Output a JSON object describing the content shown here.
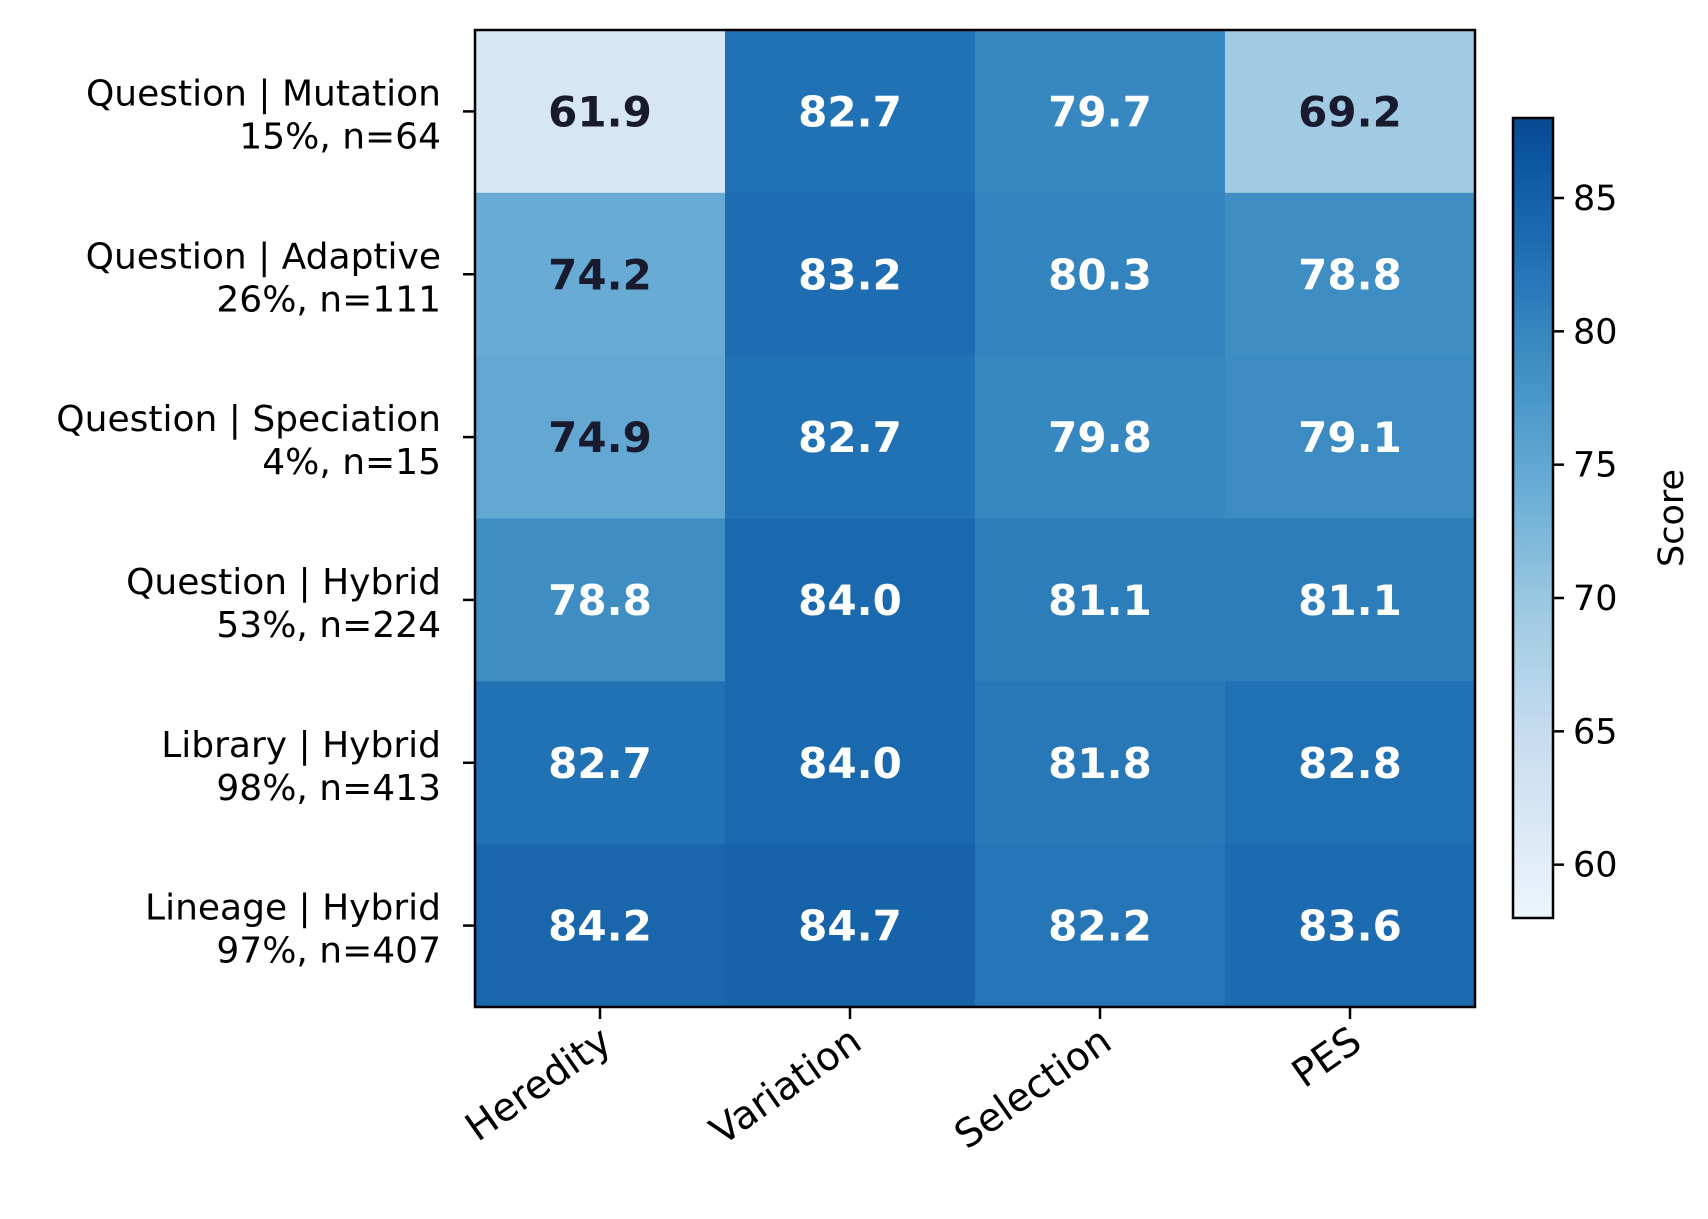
{
  "chart_data": {
    "type": "heatmap",
    "columns": [
      "Heredity",
      "Variation",
      "Selection",
      "PES"
    ],
    "rows": [
      {
        "label": "Question | Mutation",
        "sublabel": "15%, n=64"
      },
      {
        "label": "Question | Adaptive",
        "sublabel": "26%, n=111"
      },
      {
        "label": "Question | Speciation",
        "sublabel": "4%, n=15"
      },
      {
        "label": "Question | Hybrid",
        "sublabel": "53%, n=224"
      },
      {
        "label": "Library | Hybrid",
        "sublabel": "98%, n=413"
      },
      {
        "label": "Lineage | Hybrid",
        "sublabel": "97%, n=407"
      }
    ],
    "values": [
      [
        61.9,
        82.7,
        79.7,
        69.2
      ],
      [
        74.2,
        83.2,
        80.3,
        78.8
      ],
      [
        74.9,
        82.7,
        79.8,
        79.1
      ],
      [
        78.8,
        84.0,
        81.1,
        81.1
      ],
      [
        82.7,
        84.0,
        81.8,
        82.8
      ],
      [
        84.2,
        84.7,
        82.2,
        83.6
      ]
    ],
    "value_labels": [
      [
        "61.9",
        "82.7",
        "79.7",
        "69.2"
      ],
      [
        "74.2",
        "83.2",
        "80.3",
        "78.8"
      ],
      [
        "74.9",
        "82.7",
        "79.8",
        "79.1"
      ],
      [
        "78.8",
        "84.0",
        "81.1",
        "81.1"
      ],
      [
        "82.7",
        "84.0",
        "81.8",
        "82.8"
      ],
      [
        "84.2",
        "84.7",
        "82.2",
        "83.6"
      ]
    ],
    "colorbar": {
      "label": "Score",
      "range": [
        58,
        88
      ],
      "ticks": [
        60,
        65,
        70,
        75,
        80,
        85
      ],
      "colormap": "Blues"
    },
    "colors": {
      "dark_text": "#1a1a2e",
      "light_text": "#ffffff"
    }
  }
}
